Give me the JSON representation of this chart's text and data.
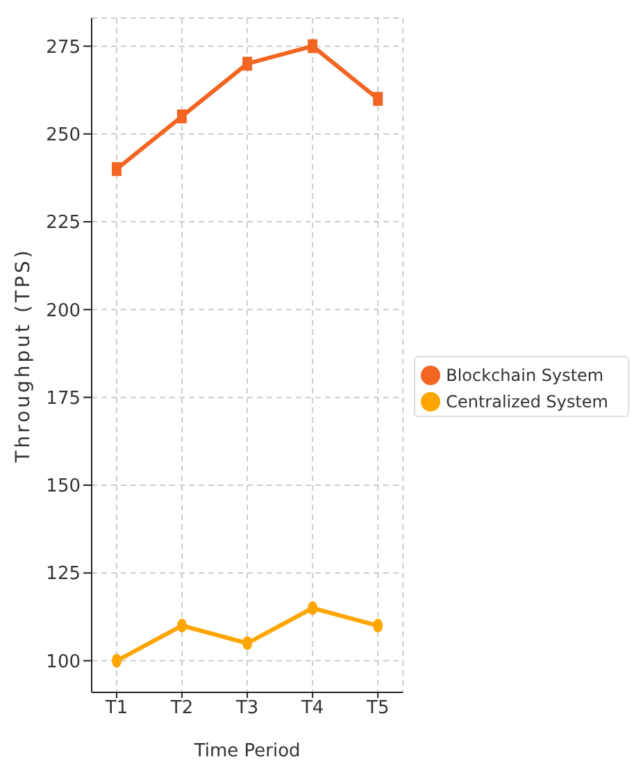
{
  "chart_data": {
    "type": "line",
    "xlabel": "Time Period",
    "ylabel": "Throughput (TPS)",
    "categories": [
      "T1",
      "T2",
      "T3",
      "T4",
      "T5"
    ],
    "series": [
      {
        "name": "Centralized System",
        "color": "#ffa500",
        "values": [
          100,
          110,
          105,
          115,
          110
        ],
        "marker": "circle"
      },
      {
        "name": "Blockchain System",
        "color": "#f26522",
        "values": [
          240,
          255,
          270,
          275,
          260
        ],
        "marker": "square"
      }
    ],
    "ylim": [
      91,
      283
    ],
    "yticks": [
      100,
      125,
      150,
      175,
      200,
      225,
      250,
      275
    ],
    "grid": true,
    "legend": "right"
  }
}
